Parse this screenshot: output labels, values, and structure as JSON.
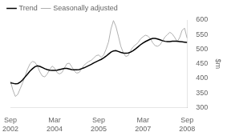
{
  "chart_data": {
    "type": "line",
    "ylabel": "$m",
    "categories": [
      "Sep\n2002",
      null,
      null,
      null,
      null,
      null,
      null,
      null,
      null,
      null,
      null,
      null,
      null,
      null,
      null,
      null,
      null,
      null,
      "Mar\n2004",
      null,
      null,
      null,
      null,
      null,
      null,
      null,
      null,
      null,
      null,
      null,
      null,
      null,
      null,
      null,
      null,
      null,
      "Sep\n2005",
      null,
      null,
      null,
      null,
      null,
      null,
      null,
      null,
      null,
      null,
      null,
      null,
      null,
      null,
      null,
      null,
      null,
      "Mar\n2007",
      null,
      null,
      null,
      null,
      null,
      null,
      null,
      null,
      null,
      null,
      null,
      null,
      null,
      null,
      null,
      null,
      null,
      "Sep\n2008"
    ],
    "series": [
      {
        "name": "Trend",
        "color": "#000000",
        "values": [
          385,
          383,
          381,
          382,
          387,
          395,
          405,
          415,
          425,
          433,
          440,
          443,
          441,
          437,
          433,
          430,
          428,
          427,
          427,
          428,
          430,
          432,
          434,
          434,
          432,
          430,
          429,
          429,
          430,
          433,
          436,
          440,
          444,
          448,
          453,
          457,
          461,
          465,
          470,
          476,
          483,
          490,
          494,
          495,
          492,
          489,
          487,
          486,
          487,
          490,
          495,
          501,
          508,
          515,
          521,
          526,
          530,
          534,
          537,
          537,
          535,
          532,
          529,
          527,
          526,
          526,
          527,
          527,
          527,
          526,
          525,
          524,
          523
        ]
      },
      {
        "name": "Seasonally adjusted",
        "color": "#b0b0b0",
        "values": [
          390,
          360,
          338,
          345,
          365,
          385,
          408,
          432,
          450,
          458,
          455,
          442,
          422,
          408,
          405,
          415,
          430,
          442,
          435,
          420,
          415,
          420,
          435,
          450,
          452,
          440,
          425,
          418,
          420,
          432,
          445,
          452,
          458,
          462,
          470,
          478,
          480,
          472,
          480,
          500,
          525,
          570,
          598,
          578,
          545,
          510,
          488,
          475,
          478,
          495,
          508,
          515,
          522,
          535,
          542,
          548,
          545,
          537,
          522,
          512,
          510,
          515,
          528,
          542,
          550,
          558,
          552,
          540,
          525,
          540,
          565,
          572,
          538
        ]
      }
    ],
    "ylim": [
      300,
      600
    ],
    "yticks": [
      300,
      350,
      400,
      450,
      500,
      550,
      600
    ],
    "grid": false,
    "legend": "upper left"
  }
}
